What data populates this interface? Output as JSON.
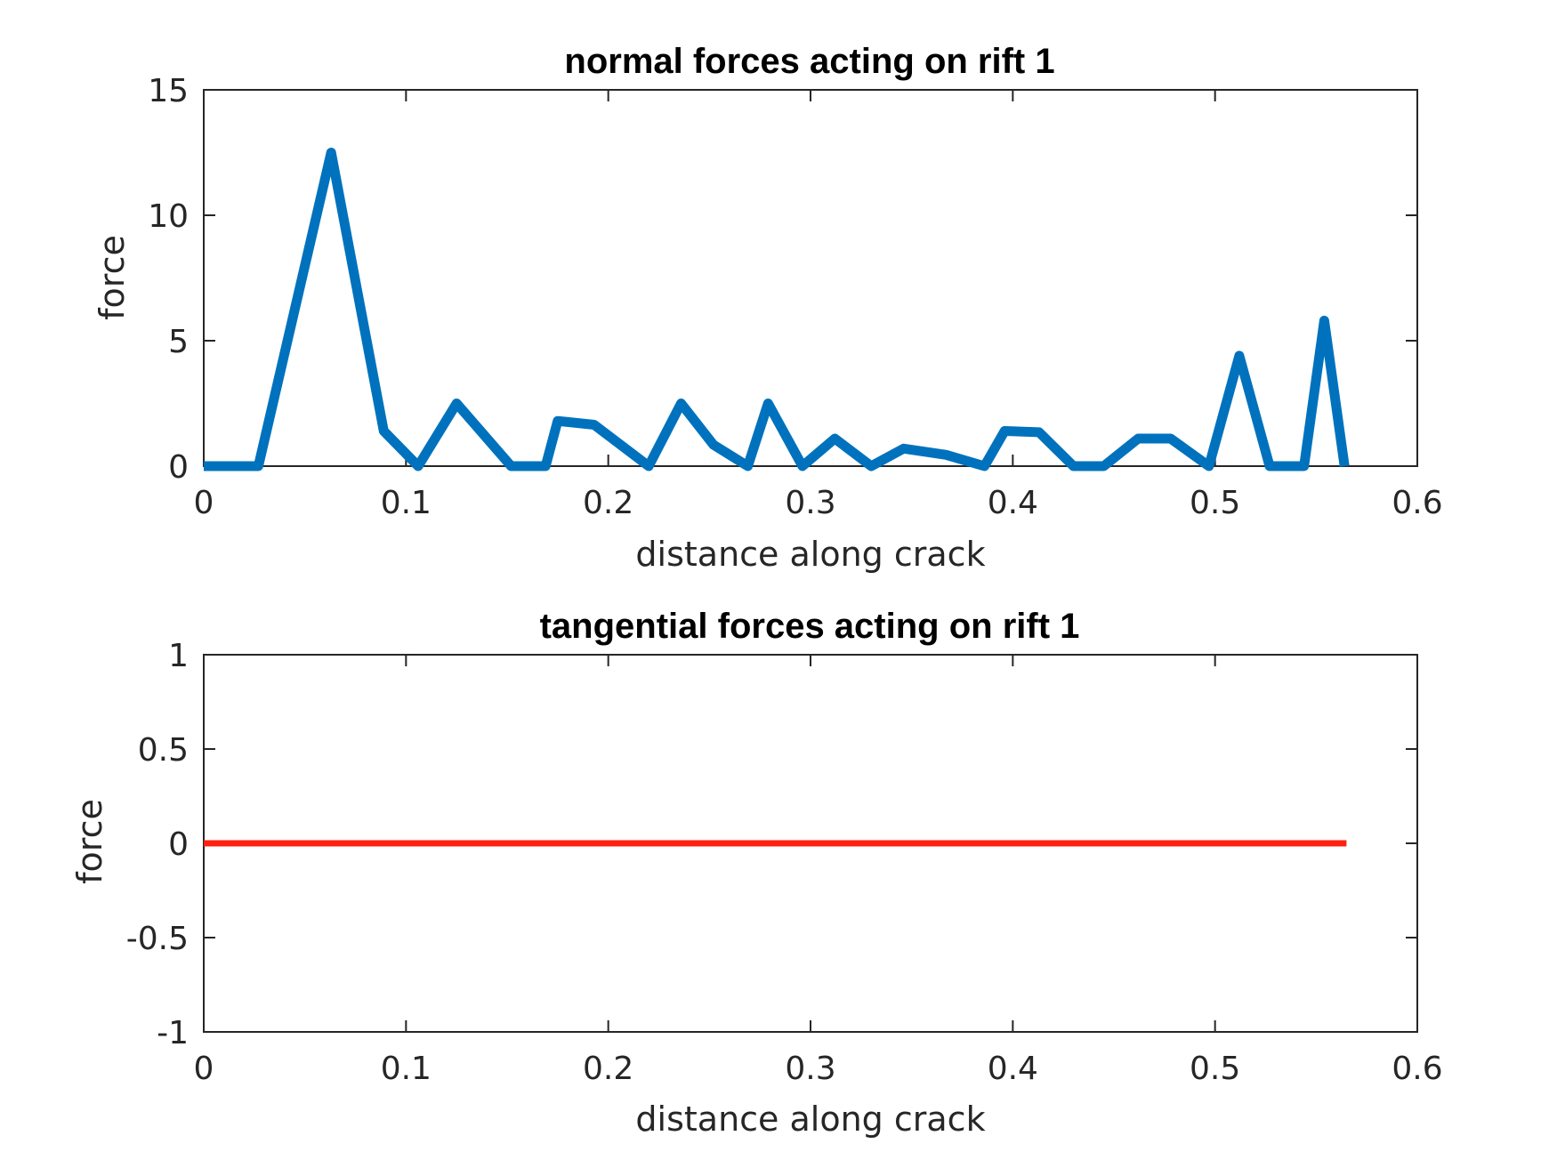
{
  "chart_data": [
    {
      "type": "line",
      "title": "normal forces acting on rift 1",
      "xlabel": "distance along crack",
      "ylabel": "force",
      "xlim": [
        0,
        0.6
      ],
      "ylim": [
        0,
        15
      ],
      "xticks": [
        "0",
        "0.1",
        "0.2",
        "0.3",
        "0.4",
        "0.5",
        "0.6"
      ],
      "yticks": [
        "0",
        "5",
        "10",
        "15"
      ],
      "grid": false,
      "color": "#0072BD",
      "series": [
        {
          "x": [
            0,
            0.027,
            0.063,
            0.089,
            0.106,
            0.125,
            0.152,
            0.169,
            0.175,
            0.193,
            0.22,
            0.236,
            0.252,
            0.269,
            0.279,
            0.296,
            0.312,
            0.33,
            0.346,
            0.367,
            0.386,
            0.396,
            0.413,
            0.43,
            0.445,
            0.462,
            0.478,
            0.497,
            0.512,
            0.527,
            0.544,
            0.554,
            0.564
          ],
          "y": [
            0,
            0,
            12.5,
            1.4,
            0,
            2.5,
            0,
            0,
            1.8,
            1.65,
            0,
            2.5,
            0.85,
            0,
            2.5,
            0,
            1.1,
            0,
            0.7,
            0.45,
            0,
            1.4,
            1.35,
            0,
            0,
            1.1,
            1.1,
            0,
            4.4,
            0,
            0,
            5.8,
            0
          ]
        }
      ]
    },
    {
      "type": "line",
      "title": "tangential forces acting on rift 1",
      "xlabel": "distance along crack",
      "ylabel": "force",
      "xlim": [
        0,
        0.6
      ],
      "ylim": [
        -1,
        1
      ],
      "xticks": [
        "0",
        "0.1",
        "0.2",
        "0.3",
        "0.4",
        "0.5",
        "0.6"
      ],
      "yticks": [
        "-1",
        "-0.5",
        "0",
        "0.5",
        "1"
      ],
      "grid": false,
      "color": "#FF2010",
      "series": [
        {
          "x": [
            0,
            0.565
          ],
          "y": [
            0,
            0
          ]
        }
      ]
    }
  ]
}
